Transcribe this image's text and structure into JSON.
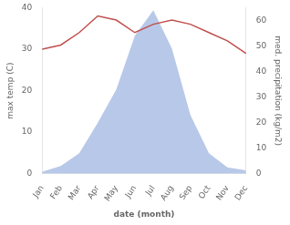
{
  "chart_data": {
    "type": "line",
    "xlabel": "date (month)",
    "ylabel": "max temp (C)",
    "y2label": "med. precipitation (kg/m2)",
    "categories": [
      "Jan",
      "Feb",
      "Mar",
      "Apr",
      "May",
      "Jun",
      "Jul",
      "Aug",
      "Sep",
      "Oct",
      "Nov",
      "Dec"
    ],
    "series": [
      {
        "type": "area",
        "color": "#b8c8e8",
        "axis": "y2",
        "values": [
          0.8,
          3,
          8,
          20,
          33,
          54,
          64,
          49,
          23,
          8,
          2.5,
          1.3
        ]
      },
      {
        "type": "line",
        "color": "#c0504d",
        "values": [
          30,
          31,
          34,
          38,
          37,
          34,
          36,
          37,
          36,
          34,
          32,
          29
        ]
      }
    ],
    "ylim": [
      0,
      40
    ],
    "yticks": [
      0,
      10,
      20,
      30,
      40
    ],
    "y2lim": [
      0,
      65
    ],
    "y2ticks": [
      0,
      10,
      20,
      30,
      40,
      50,
      60
    ],
    "grid": false
  }
}
